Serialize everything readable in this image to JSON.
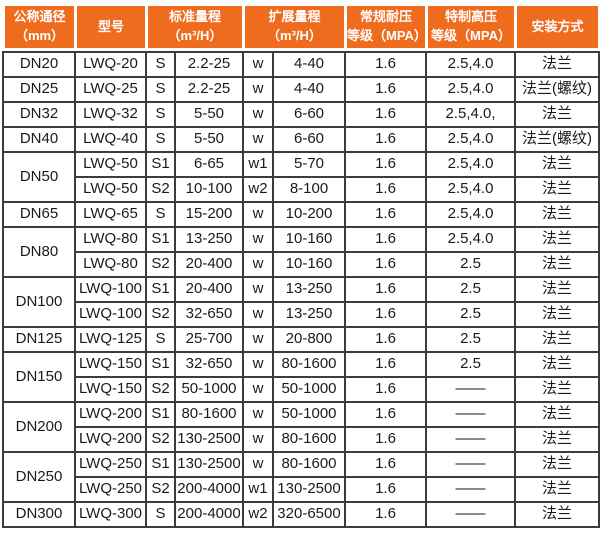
{
  "table": {
    "header": {
      "cells": [
        {
          "id": "dn",
          "label": "公称通径\n（mm）"
        },
        {
          "id": "model",
          "label": "型号"
        },
        {
          "id": "std",
          "label": "标准量程\n（m³/H）"
        },
        {
          "id": "ext",
          "label": "扩展量程\n（m³/H）"
        },
        {
          "id": "pressure",
          "label": "常规耐压\n等级（MPA）"
        },
        {
          "id": "hp",
          "label": "特制高压\n等级（MPA）"
        },
        {
          "id": "install",
          "label": "安装方式"
        }
      ]
    },
    "rows": [
      {
        "dn": "DN20",
        "dn_span": 1,
        "model": "LWQ-20",
        "s": "S",
        "std": "2.2-25",
        "w": "w",
        "ext": "4-40",
        "pressure": "1.6",
        "hp": "2.5,4.0",
        "install": "法兰"
      },
      {
        "dn": "DN25",
        "dn_span": 1,
        "model": "LWQ-25",
        "s": "S",
        "std": "2.2-25",
        "w": "w",
        "ext": "4-40",
        "pressure": "1.6",
        "hp": "2.5,4.0",
        "install": "法兰(螺纹)"
      },
      {
        "dn": "DN32",
        "dn_span": 1,
        "model": "LWQ-32",
        "s": "S",
        "std": "5-50",
        "w": "w",
        "ext": "6-60",
        "pressure": "1.6",
        "hp": "2.5,4.0,",
        "install": "法兰"
      },
      {
        "dn": "DN40",
        "dn_span": 1,
        "model": "LWQ-40",
        "s": "S",
        "std": "5-50",
        "w": "w",
        "ext": "6-60",
        "pressure": "1.6",
        "hp": "2.5,4.0",
        "install": "法兰(螺纹)"
      },
      {
        "dn": "DN50",
        "dn_span": 2,
        "model": "LWQ-50",
        "s": "S1",
        "std": "6-65",
        "w": "w1",
        "ext": "5-70",
        "pressure": "1.6",
        "hp": "2.5,4.0",
        "install": "法兰"
      },
      {
        "model": "LWQ-50",
        "s": "S2",
        "std": "10-100",
        "w": "w2",
        "ext": "8-100",
        "pressure": "1.6",
        "hp": "2.5,4.0",
        "install": "法兰"
      },
      {
        "dn": "DN65",
        "dn_span": 1,
        "model": "LWQ-65",
        "s": "S",
        "std": "15-200",
        "w": "w",
        "ext": "10-200",
        "pressure": "1.6",
        "hp": "2.5,4.0",
        "install": "法兰"
      },
      {
        "dn": "DN80",
        "dn_span": 2,
        "model": "LWQ-80",
        "s": "S1",
        "std": "13-250",
        "w": "w",
        "ext": "10-160",
        "pressure": "1.6",
        "hp": "2.5,4.0",
        "install": "法兰"
      },
      {
        "model": "LWQ-80",
        "s": "S2",
        "std": "20-400",
        "w": "w",
        "ext": "10-160",
        "pressure": "1.6",
        "hp": "2.5",
        "install": "法兰"
      },
      {
        "dn": "DN100",
        "dn_span": 2,
        "model": "LWQ-100",
        "s": "S1",
        "std": "20-400",
        "w": "w",
        "ext": "13-250",
        "pressure": "1.6",
        "hp": "2.5",
        "install": "法兰"
      },
      {
        "model": "LWQ-100",
        "s": "S2",
        "std": "32-650",
        "w": "w",
        "ext": "13-250",
        "pressure": "1.6",
        "hp": "2.5",
        "install": "法兰"
      },
      {
        "dn": "DN125",
        "dn_span": 1,
        "model": "LWQ-125",
        "s": "S",
        "std": "25-700",
        "w": "w",
        "ext": "20-800",
        "pressure": "1.6",
        "hp": "2.5",
        "install": "法兰"
      },
      {
        "dn": "DN150",
        "dn_span": 2,
        "model": "LWQ-150",
        "s": "S1",
        "std": "32-650",
        "w": "w",
        "ext": "80-1600",
        "pressure": "1.6",
        "hp": "2.5",
        "install": "法兰"
      },
      {
        "model": "LWQ-150",
        "s": "S2",
        "std": "50-1000",
        "w": "w",
        "ext": "50-1000",
        "pressure": "1.6",
        "hp": "——",
        "install": "法兰"
      },
      {
        "dn": "DN200",
        "dn_span": 2,
        "model": "LWQ-200",
        "s": "S1",
        "std": "80-1600",
        "w": "w",
        "ext": "50-1000",
        "pressure": "1.6",
        "hp": "——",
        "install": "法兰"
      },
      {
        "model": "LWQ-200",
        "s": "S2",
        "std": "130-2500",
        "w": "w",
        "ext": "80-1600",
        "pressure": "1.6",
        "hp": "——",
        "install": "法兰"
      },
      {
        "dn": "DN250",
        "dn_span": 2,
        "model": "LWQ-250",
        "s": "S1",
        "std": "130-2500",
        "w": "w",
        "ext": "80-1600",
        "pressure": "1.6",
        "hp": "——",
        "install": "法兰"
      },
      {
        "model": "LWQ-250",
        "s": "S2",
        "std": "200-4000",
        "w": "w1",
        "ext": "130-2500",
        "pressure": "1.6",
        "hp": "——",
        "install": "法兰"
      },
      {
        "dn": "DN300",
        "dn_span": 1,
        "model": "LWQ-300",
        "s": "S",
        "std": "200-4000",
        "w": "w2",
        "ext": "320-6500",
        "pressure": "1.6",
        "hp": "——",
        "install": "法兰"
      }
    ],
    "colors": {
      "header_bg": "#ef6c1f",
      "header_text": "#ffffff",
      "grid_border": "#3c3c3c",
      "cell_text": "#1a1a1a"
    }
  }
}
